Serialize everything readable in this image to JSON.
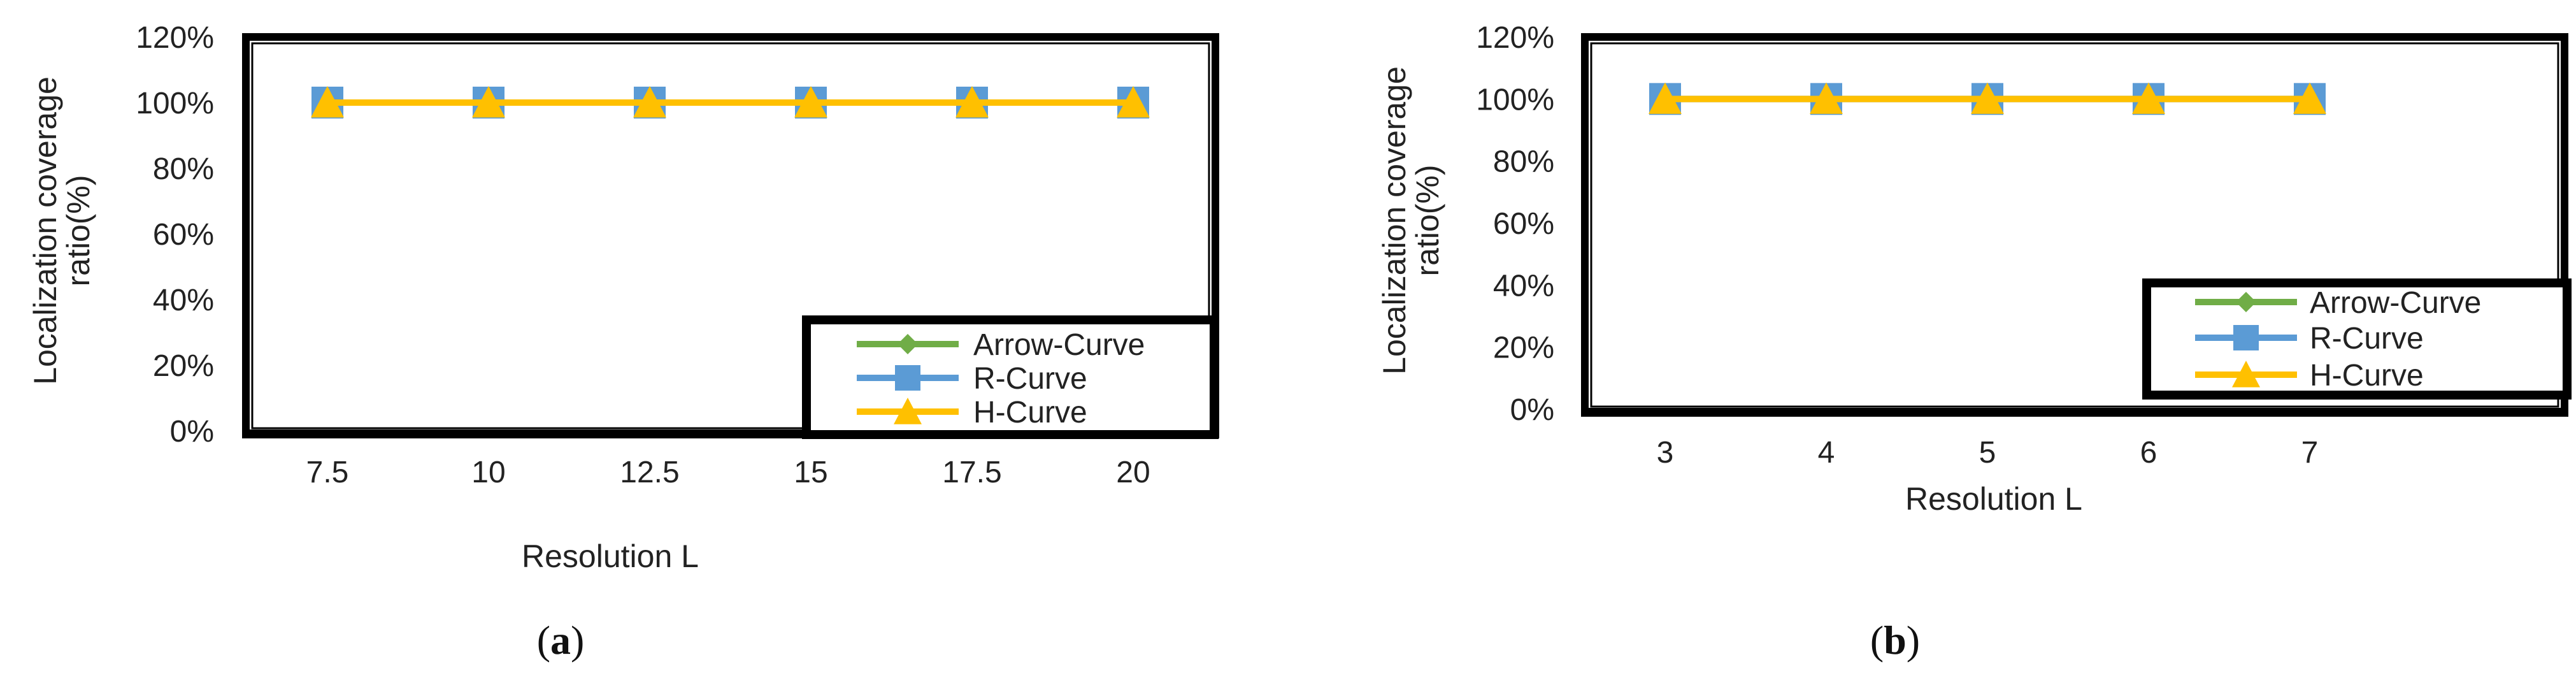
{
  "chart_data": [
    {
      "type": "line",
      "panel_label": "a",
      "xlabel": "Resolution L",
      "ylabel": "Localization coverage ratio(%)",
      "ylabel_lines": [
        "Localization coverage",
        "ratio(%)"
      ],
      "categories": [
        "7.5",
        "10",
        "12.5",
        "15",
        "17.5",
        "20"
      ],
      "ylim": [
        0,
        120
      ],
      "yticks": [
        "0%",
        "20%",
        "40%",
        "60%",
        "80%",
        "100%",
        "120%"
      ],
      "legend_position": "bottom-right",
      "grid": false,
      "series": [
        {
          "name": "Arrow-Curve",
          "values": [
            100,
            100,
            100,
            100,
            100,
            100
          ],
          "color": "#70AD47",
          "marker": "diamond"
        },
        {
          "name": "R-Curve",
          "values": [
            100,
            100,
            100,
            100,
            100,
            100
          ],
          "color": "#5B9BD5",
          "marker": "square"
        },
        {
          "name": "H-Curve",
          "values": [
            100,
            100,
            100,
            100,
            100,
            100
          ],
          "color": "#FFC000",
          "marker": "triangle"
        }
      ]
    },
    {
      "type": "line",
      "panel_label": "b",
      "xlabel": "Resolution L",
      "ylabel": "Localization coverage ratio(%)",
      "ylabel_lines": [
        "Localization coverage",
        "ratio(%)"
      ],
      "categories": [
        "3",
        "4",
        "5",
        "6",
        "7"
      ],
      "ylim": [
        0,
        120
      ],
      "yticks": [
        "0%",
        "20%",
        "40%",
        "60%",
        "80%",
        "100%",
        "120%"
      ],
      "legend_position": "bottom-right",
      "grid": false,
      "series": [
        {
          "name": "Arrow-Curve",
          "values": [
            100,
            100,
            100,
            100,
            100
          ],
          "color": "#70AD47",
          "marker": "diamond"
        },
        {
          "name": "R-Curve",
          "values": [
            100,
            100,
            100,
            100,
            100
          ],
          "color": "#5B9BD5",
          "marker": "square"
        },
        {
          "name": "H-Curve",
          "values": [
            100,
            100,
            100,
            100,
            100
          ],
          "color": "#FFC000",
          "marker": "triangle"
        }
      ]
    }
  ]
}
